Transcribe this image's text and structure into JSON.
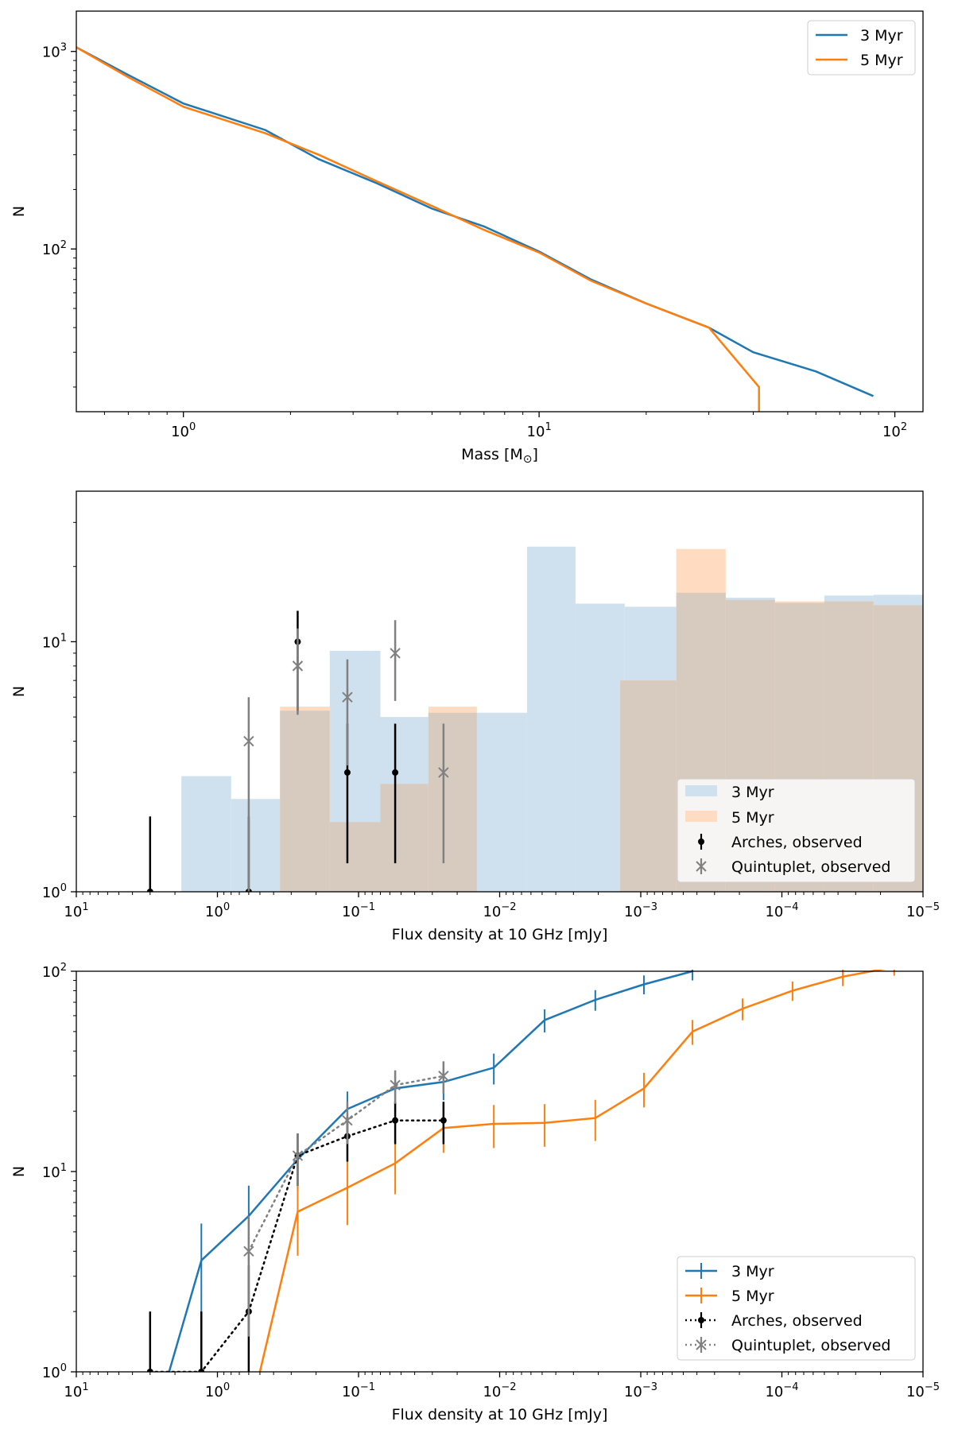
{
  "colors": {
    "blue": "#1f77b4",
    "orange": "#ff7f0e",
    "blue_fill": "#cfe0ee",
    "orange_fill": "#ffdcc1",
    "overlap_fill": "#d7cbc0",
    "black": "#000000",
    "gray": "#808080"
  },
  "chart_data": [
    {
      "type": "line",
      "title": "",
      "xlabel": "Mass [M",
      "xlabel_sub": "⊙",
      "xlabel_close": "]",
      "ylabel": "N",
      "xscale": "log",
      "yscale": "log",
      "xlim": [
        0.5,
        120
      ],
      "ylim": [
        15,
        1600
      ],
      "xticks": [
        1,
        10,
        100
      ],
      "xtick_labels": [
        {
          "base": "10",
          "exp": "0"
        },
        {
          "base": "10",
          "exp": "1"
        },
        {
          "base": "10",
          "exp": "2"
        }
      ],
      "yticks": [
        100,
        1000
      ],
      "ytick_labels": [
        {
          "base": "10",
          "exp": "2"
        },
        {
          "base": "10",
          "exp": "3"
        }
      ],
      "legend_position": "top-right",
      "series": [
        {
          "name": "3 Myr",
          "color": "#1f77b4",
          "x": [
            0.5,
            0.7,
            1.0,
            1.7,
            2.4,
            3.5,
            5.0,
            7.0,
            10.0,
            14.0,
            20.0,
            30.0,
            40.0,
            60.0,
            87.0
          ],
          "y": [
            1050,
            760,
            545,
            400,
            285,
            215,
            160,
            130,
            97,
            70,
            53,
            40,
            30,
            24,
            18
          ]
        },
        {
          "name": "5 Myr",
          "color": "#ff7f0e",
          "x": [
            0.5,
            0.7,
            1.0,
            1.7,
            2.4,
            3.5,
            5.0,
            7.0,
            10.0,
            14.0,
            20.0,
            30.0,
            41.5,
            41.5
          ],
          "y": [
            1050,
            740,
            525,
            385,
            300,
            220,
            165,
            125,
            96,
            69,
            53,
            40,
            20,
            15
          ]
        }
      ]
    },
    {
      "type": "histogram",
      "title": "",
      "xlabel": "Flux density at 10 GHz [mJy]",
      "ylabel": "N",
      "xscale": "log (inverted)",
      "yscale": "log",
      "xlim": [
        10,
        1e-05
      ],
      "ylim": [
        1,
        40
      ],
      "xticks": [
        10,
        1,
        0.1,
        0.01,
        0.001,
        0.0001,
        1e-05
      ],
      "xtick_labels": [
        {
          "base": "10",
          "exp": "1"
        },
        {
          "base": "10",
          "exp": "0"
        },
        {
          "base": "10",
          "exp": "−1"
        },
        {
          "base": "10",
          "exp": "−2"
        },
        {
          "base": "10",
          "exp": "−3"
        },
        {
          "base": "10",
          "exp": "−4"
        },
        {
          "base": "10",
          "exp": "−5"
        }
      ],
      "yticks": [
        1,
        10
      ],
      "ytick_labels": [
        {
          "base": "10",
          "exp": "0"
        },
        {
          "base": "10",
          "exp": "1"
        }
      ],
      "legend_position": "lower-right",
      "histograms": [
        {
          "name": "3 Myr",
          "color": "#cfe0ee",
          "bins": [
            [
              1.8,
              0.8,
              2.9
            ],
            [
              0.8,
              0.36,
              2.35
            ],
            [
              0.36,
              0.16,
              5.3
            ],
            [
              0.16,
              0.07,
              9.2
            ],
            [
              0.07,
              0.032,
              5.0
            ],
            [
              0.032,
              0.0145,
              5.2
            ],
            [
              0.0145,
              0.0064,
              5.2
            ],
            [
              0.0064,
              0.0029,
              24
            ],
            [
              0.0029,
              0.0013,
              14.2
            ],
            [
              0.0013,
              0.00056,
              13.8
            ],
            [
              0.00056,
              0.00025,
              15.7
            ],
            [
              0.00025,
              0.000112,
              15.0
            ],
            [
              0.000112,
              5e-05,
              14.3
            ],
            [
              5e-05,
              2.24e-05,
              15.3
            ],
            [
              2.24e-05,
              1e-05,
              15.4
            ]
          ]
        },
        {
          "name": "5 Myr",
          "color": "#ffdcc1",
          "bins": [
            [
              0.36,
              0.16,
              5.5
            ],
            [
              0.16,
              0.07,
              1.9
            ],
            [
              0.07,
              0.032,
              2.7
            ],
            [
              0.032,
              0.0145,
              5.5
            ],
            [
              0.0014,
              0.00056,
              7.0
            ],
            [
              0.00056,
              0.00025,
              23.5
            ],
            [
              0.00025,
              0.000112,
              14.7
            ],
            [
              0.000112,
              5e-05,
              14.5
            ],
            [
              5e-05,
              2.24e-05,
              14.5
            ],
            [
              2.24e-05,
              1e-05,
              14.0
            ]
          ]
        }
      ],
      "errorbar_series": [
        {
          "name": "Arches, observed",
          "color": "#000000",
          "marker": "dot",
          "x": [
            3.0,
            0.6,
            0.27,
            0.12,
            0.055
          ],
          "y": [
            1,
            1,
            10,
            3,
            3
          ],
          "y_low": [
            1,
            1,
            5.3,
            1.3,
            1.3
          ],
          "y_high": [
            2,
            2,
            13.3,
            4.7,
            4.7
          ]
        },
        {
          "name": "Quintuplet, observed",
          "color": "#808080",
          "marker": "x",
          "x": [
            0.6,
            0.27,
            0.12,
            0.055,
            0.025
          ],
          "y": [
            4,
            8,
            6,
            9,
            3
          ],
          "y_low": [
            1,
            5.1,
            3.2,
            5.8,
            1.3
          ],
          "y_high": [
            6,
            11.3,
            8.5,
            12.2,
            4.7
          ]
        }
      ]
    },
    {
      "type": "line",
      "title": "",
      "xlabel": "Flux density at 10 GHz [mJy]",
      "ylabel": "N",
      "xscale": "log (inverted)",
      "yscale": "log",
      "xlim": [
        10,
        1e-05
      ],
      "ylim": [
        1,
        100
      ],
      "xticks": [
        10,
        1,
        0.1,
        0.01,
        0.001,
        0.0001,
        1e-05
      ],
      "xtick_labels": [
        {
          "base": "10",
          "exp": "1"
        },
        {
          "base": "10",
          "exp": "0"
        },
        {
          "base": "10",
          "exp": "−1"
        },
        {
          "base": "10",
          "exp": "−2"
        },
        {
          "base": "10",
          "exp": "−3"
        },
        {
          "base": "10",
          "exp": "−4"
        },
        {
          "base": "10",
          "exp": "−5"
        }
      ],
      "yticks": [
        1,
        10,
        100
      ],
      "ytick_labels": [
        {
          "base": "10",
          "exp": "0"
        },
        {
          "base": "10",
          "exp": "1"
        },
        {
          "base": "10",
          "exp": "2"
        }
      ],
      "legend_position": "lower-right",
      "series": [
        {
          "name": "3 Myr",
          "color": "#1f77b4",
          "style": "solid",
          "x": [
            2.2,
            1.3,
            0.6,
            0.27,
            0.12,
            0.055,
            0.025,
            0.011,
            0.0048,
            0.0021,
            0.00095,
            0.00043
          ],
          "y": [
            1,
            3.6,
            6.0,
            11.5,
            20.5,
            26,
            28,
            33,
            57,
            72,
            86,
            100
          ],
          "err": [
            0,
            1.9,
            2.5,
            3.5,
            4.6,
            5.2,
            5.3,
            5.8,
            7.5,
            8.5,
            9.3,
            10
          ]
        },
        {
          "name": "5 Myr",
          "color": "#ff7f0e",
          "style": "solid",
          "x": [
            0.5,
            0.27,
            0.12,
            0.055,
            0.025,
            0.011,
            0.0048,
            0.0021,
            0.00095,
            0.00043,
            0.00019,
            8.4e-05,
            3.7e-05,
            1.6e-05
          ],
          "y": [
            1,
            6.3,
            8.3,
            11,
            16.5,
            17.3,
            17.5,
            18.5,
            26,
            50,
            65,
            80,
            94,
            105
          ],
          "err": [
            0,
            2.5,
            2.9,
            3.3,
            4.1,
            4.2,
            4.2,
            4.3,
            5.1,
            7.1,
            8.1,
            8.9,
            9.7,
            10
          ]
        },
        {
          "name": "Arches, observed",
          "color": "#000000",
          "style": "dotted",
          "marker": "dot",
          "x": [
            3.0,
            1.3,
            0.6,
            0.27,
            0.12,
            0.055,
            0.025
          ],
          "y": [
            1,
            1,
            2,
            12,
            15,
            18,
            18
          ],
          "y_low": [
            1,
            1,
            1,
            8.5,
            11.2,
            13.7,
            13.7
          ],
          "y_high": [
            2,
            2,
            3.4,
            15.5,
            18.8,
            22.3,
            22.3
          ]
        },
        {
          "name": "Quintuplet, observed",
          "color": "#808080",
          "style": "dotted",
          "marker": "x",
          "x": [
            0.6,
            0.27,
            0.12,
            0.055,
            0.025
          ],
          "y": [
            4,
            12,
            18,
            27,
            30
          ],
          "y_low": [
            1.5,
            8.5,
            13.7,
            21.8,
            24.5
          ],
          "y_high": [
            6,
            15.5,
            22.3,
            32,
            35.5
          ]
        }
      ]
    }
  ]
}
